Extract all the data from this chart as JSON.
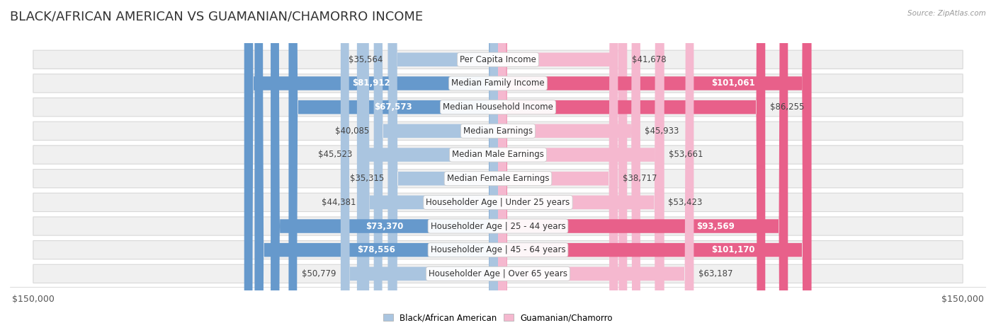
{
  "title": "BLACK/AFRICAN AMERICAN VS GUAMANIAN/CHAMORRO INCOME",
  "source": "Source: ZipAtlas.com",
  "categories": [
    "Per Capita Income",
    "Median Family Income",
    "Median Household Income",
    "Median Earnings",
    "Median Male Earnings",
    "Median Female Earnings",
    "Householder Age | Under 25 years",
    "Householder Age | 25 - 44 years",
    "Householder Age | 45 - 64 years",
    "Householder Age | Over 65 years"
  ],
  "left_values": [
    35564,
    81912,
    67573,
    40085,
    45523,
    35315,
    44381,
    73370,
    78556,
    50779
  ],
  "right_values": [
    41678,
    101061,
    86255,
    45933,
    53661,
    38717,
    53423,
    93569,
    101170,
    63187
  ],
  "left_labels": [
    "$35,564",
    "$81,912",
    "$67,573",
    "$40,085",
    "$45,523",
    "$35,315",
    "$44,381",
    "$73,370",
    "$78,556",
    "$50,779"
  ],
  "right_labels": [
    "$41,678",
    "$101,061",
    "$86,255",
    "$45,933",
    "$53,661",
    "$38,717",
    "$53,423",
    "$93,569",
    "$101,170",
    "$63,187"
  ],
  "right_white_text": [
    false,
    true,
    false,
    false,
    false,
    false,
    false,
    true,
    true,
    false
  ],
  "left_white_text": [
    false,
    true,
    true,
    false,
    false,
    false,
    false,
    true,
    true,
    false
  ],
  "left_color_light": "#aac5e0",
  "left_color_dark": "#6699cc",
  "right_color_light": "#f5b8cf",
  "right_color_dark": "#e8608a",
  "row_bg": "#f0f0f0",
  "row_border": "#d8d8d8",
  "max_value": 150000,
  "legend_left": "Black/African American",
  "legend_right": "Guamanian/Chamorro",
  "title_fontsize": 13,
  "axis_label_fontsize": 9,
  "category_fontsize": 8.5,
  "value_fontsize": 8.5
}
